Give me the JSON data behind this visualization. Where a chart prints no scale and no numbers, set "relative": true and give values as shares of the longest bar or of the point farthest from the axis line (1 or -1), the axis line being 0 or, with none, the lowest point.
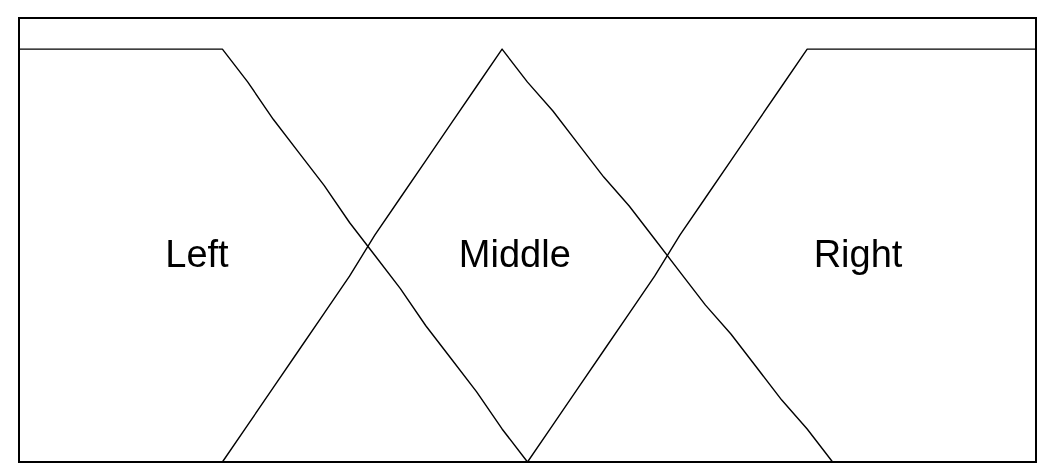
{
  "chart_data": {
    "type": "line",
    "relative": true,
    "categories": [
      null,
      null,
      null,
      null,
      null,
      null,
      null,
      null,
      null,
      null,
      null,
      null,
      null,
      null,
      null,
      null,
      null,
      null,
      null,
      null,
      null,
      null,
      null,
      null,
      null,
      null,
      null,
      null,
      null,
      null,
      null,
      null,
      null,
      null,
      null,
      null,
      null,
      null,
      null,
      null,
      null
    ],
    "series": [
      {
        "name": "Left",
        "color": "#000000",
        "values": [
          1,
          1,
          1,
          1,
          1,
          1,
          1,
          1,
          1,
          0.92,
          0.83,
          0.75,
          0.67,
          0.58,
          0.5,
          0.42,
          0.33,
          0.25,
          0.17,
          0.08,
          0,
          0,
          0,
          0,
          0,
          0,
          0,
          0,
          0,
          0,
          0,
          0,
          0,
          0,
          0,
          0,
          0,
          0,
          0,
          0,
          0
        ]
      },
      {
        "name": "Middle",
        "color": "#000000",
        "values": [
          0,
          0,
          0,
          0,
          0,
          0,
          0,
          0,
          0,
          0.09,
          0.18,
          0.27,
          0.36,
          0.45,
          0.55,
          0.64,
          0.73,
          0.82,
          0.91,
          1,
          0.92,
          0.85,
          0.77,
          0.69,
          0.62,
          0.54,
          0.46,
          0.38,
          0.31,
          0.23,
          0.15,
          0.08,
          0,
          0,
          0,
          0,
          0,
          0,
          0,
          0,
          0
        ]
      },
      {
        "name": "Right",
        "color": "#000000",
        "values": [
          0,
          0,
          0,
          0,
          0,
          0,
          0,
          0,
          0,
          0,
          0,
          0,
          0,
          0,
          0,
          0,
          0,
          0,
          0,
          0,
          0,
          0.09,
          0.18,
          0.27,
          0.36,
          0.45,
          0.55,
          0.64,
          0.73,
          0.82,
          0.91,
          1,
          1,
          1,
          1,
          1,
          1,
          1,
          1,
          1,
          1
        ]
      }
    ]
  }
}
